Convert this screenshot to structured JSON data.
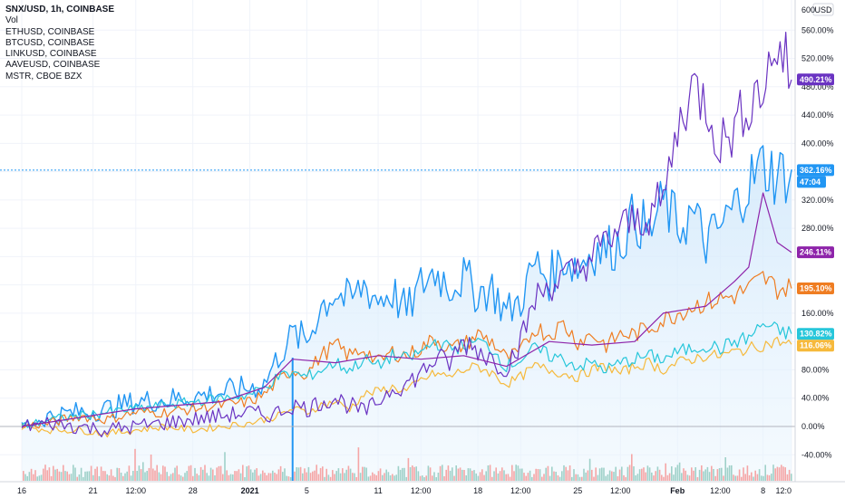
{
  "legend": {
    "main_symbol": "SNX/USD, 1h, COINBASE",
    "volume_label": "Vol",
    "compare": [
      "ETHUSD, COINBASE",
      "BTCUSD, COINBASE",
      "LINKUSD, COINBASE",
      "AAVEUSD, COINBASE",
      "MSTR, CBOE BZX"
    ]
  },
  "price_axis": {
    "currency": "USD",
    "top_value": "600",
    "ticks": [
      "560.00%",
      "520.00%",
      "480.00%",
      "440.00%",
      "400.00%",
      "320.00%",
      "280.00%",
      "160.00%",
      "80.00%",
      "40.00%",
      "0.00%",
      "-40.00%"
    ]
  },
  "time_axis": {
    "labels": [
      "16",
      "21",
      "12:00",
      "28",
      "2021",
      "5",
      "11",
      "12:00",
      "18",
      "12:00",
      "25",
      "12:00",
      "Feb",
      "12:00",
      "8",
      "12:0"
    ]
  },
  "colors": {
    "snx": "#2196f3",
    "eth": "#ef7d22",
    "btc": "#f6b93b",
    "link": "#26c6da",
    "aave": "#6a33c2",
    "mstr": "#8e24aa",
    "volume_up": "#9fd1c9",
    "volume_down": "#f5a6a6",
    "area_fill": "#e3f2fd"
  },
  "chart_data": {
    "type": "line",
    "title": "SNX/USD, 1h, COINBASE",
    "y_unit": "%",
    "ylim": [
      -60,
      600
    ],
    "x_range": [
      "Dec 16 2020",
      "Feb 12 2021"
    ],
    "scale": "percent",
    "grid": true,
    "legend_position": "top-left",
    "countdown": "47:04",
    "series": [
      {
        "name": "SNX/USD, COINBASE",
        "color": "#2196f3",
        "last_value": "362.16%",
        "points": [
          [
            16,
            0
          ],
          [
            18,
            15
          ],
          [
            20,
            20
          ],
          [
            22,
            25
          ],
          [
            24,
            35
          ],
          [
            26,
            38
          ],
          [
            28,
            42
          ],
          [
            30,
            48
          ],
          [
            32,
            55
          ],
          [
            33,
            60
          ],
          [
            34,
            100
          ],
          [
            35,
            130
          ],
          [
            36,
            120
          ],
          [
            37,
            170
          ],
          [
            38,
            190
          ],
          [
            39,
            175
          ],
          [
            40,
            200
          ],
          [
            41,
            180
          ],
          [
            42,
            190
          ],
          [
            43,
            160
          ],
          [
            44,
            200
          ],
          [
            45,
            220
          ],
          [
            46,
            200
          ],
          [
            47,
            210
          ],
          [
            48,
            190
          ],
          [
            49,
            195
          ],
          [
            50,
            160
          ],
          [
            51,
            180
          ],
          [
            52,
            230
          ],
          [
            53,
            210
          ],
          [
            54,
            240
          ],
          [
            55,
            225
          ],
          [
            56,
            250
          ],
          [
            57,
            250
          ],
          [
            58,
            260
          ],
          [
            59,
            300
          ],
          [
            60,
            270
          ],
          [
            61,
            320
          ],
          [
            62,
            280
          ],
          [
            63,
            300
          ],
          [
            64,
            260
          ],
          [
            65,
            280
          ],
          [
            66,
            310
          ],
          [
            67,
            345
          ],
          [
            68,
            370
          ],
          [
            69,
            355
          ],
          [
            70,
            362
          ]
        ]
      },
      {
        "name": "ETHUSD, COINBASE",
        "color": "#ef7d22",
        "last_value": "195.10%",
        "points": [
          [
            16,
            0
          ],
          [
            18,
            5
          ],
          [
            20,
            15
          ],
          [
            22,
            10
          ],
          [
            24,
            20
          ],
          [
            26,
            20
          ],
          [
            28,
            25
          ],
          [
            30,
            30
          ],
          [
            32,
            35
          ],
          [
            33,
            45
          ],
          [
            34,
            65
          ],
          [
            35,
            80
          ],
          [
            36,
            75
          ],
          [
            37,
            100
          ],
          [
            38,
            115
          ],
          [
            39,
            100
          ],
          [
            40,
            110
          ],
          [
            41,
            90
          ],
          [
            42,
            105
          ],
          [
            43,
            100
          ],
          [
            44,
            110
          ],
          [
            45,
            125
          ],
          [
            46,
            110
          ],
          [
            47,
            115
          ],
          [
            48,
            130
          ],
          [
            49,
            120
          ],
          [
            50,
            95
          ],
          [
            51,
            105
          ],
          [
            52,
            140
          ],
          [
            53,
            130
          ],
          [
            54,
            145
          ],
          [
            55,
            120
          ],
          [
            56,
            130
          ],
          [
            57,
            115
          ],
          [
            58,
            130
          ],
          [
            59,
            130
          ],
          [
            60,
            140
          ],
          [
            61,
            150
          ],
          [
            62,
            160
          ],
          [
            63,
            170
          ],
          [
            64,
            175
          ],
          [
            65,
            180
          ],
          [
            66,
            185
          ],
          [
            67,
            195
          ],
          [
            68,
            210
          ],
          [
            69,
            195
          ],
          [
            70,
            195
          ]
        ]
      },
      {
        "name": "BTCUSD, COINBASE",
        "color": "#f6b93b",
        "last_value": "116.06%",
        "points": [
          [
            16,
            0
          ],
          [
            18,
            -5
          ],
          [
            20,
            -5
          ],
          [
            22,
            -10
          ],
          [
            24,
            -5
          ],
          [
            26,
            0
          ],
          [
            28,
            -5
          ],
          [
            30,
            0
          ],
          [
            32,
            5
          ],
          [
            33,
            10
          ],
          [
            34,
            15
          ],
          [
            35,
            25
          ],
          [
            36,
            20
          ],
          [
            37,
            30
          ],
          [
            38,
            35
          ],
          [
            39,
            25
          ],
          [
            40,
            45
          ],
          [
            41,
            50
          ],
          [
            42,
            55
          ],
          [
            43,
            50
          ],
          [
            44,
            65
          ],
          [
            45,
            75
          ],
          [
            46,
            70
          ],
          [
            47,
            80
          ],
          [
            48,
            85
          ],
          [
            49,
            75
          ],
          [
            50,
            60
          ],
          [
            51,
            70
          ],
          [
            52,
            85
          ],
          [
            53,
            80
          ],
          [
            54,
            75
          ],
          [
            55,
            70
          ],
          [
            56,
            80
          ],
          [
            57,
            85
          ],
          [
            58,
            75
          ],
          [
            59,
            85
          ],
          [
            60,
            90
          ],
          [
            61,
            80
          ],
          [
            62,
            90
          ],
          [
            63,
            95
          ],
          [
            64,
            100
          ],
          [
            65,
            100
          ],
          [
            66,
            105
          ],
          [
            67,
            110
          ],
          [
            68,
            115
          ],
          [
            69,
            120
          ],
          [
            70,
            116
          ]
        ]
      },
      {
        "name": "LINKUSD, COINBASE",
        "color": "#26c6da",
        "last_value": "130.82%",
        "points": [
          [
            16,
            0
          ],
          [
            18,
            10
          ],
          [
            20,
            15
          ],
          [
            22,
            20
          ],
          [
            24,
            25
          ],
          [
            26,
            30
          ],
          [
            28,
            35
          ],
          [
            30,
            40
          ],
          [
            32,
            45
          ],
          [
            33,
            55
          ],
          [
            34,
            70
          ],
          [
            35,
            75
          ],
          [
            36,
            70
          ],
          [
            37,
            80
          ],
          [
            38,
            90
          ],
          [
            39,
            80
          ],
          [
            40,
            95
          ],
          [
            41,
            85
          ],
          [
            42,
            100
          ],
          [
            43,
            95
          ],
          [
            44,
            105
          ],
          [
            45,
            120
          ],
          [
            46,
            110
          ],
          [
            47,
            115
          ],
          [
            48,
            120
          ],
          [
            49,
            110
          ],
          [
            50,
            85
          ],
          [
            51,
            95
          ],
          [
            52,
            110
          ],
          [
            53,
            100
          ],
          [
            54,
            95
          ],
          [
            55,
            85
          ],
          [
            56,
            90
          ],
          [
            57,
            80
          ],
          [
            58,
            90
          ],
          [
            59,
            95
          ],
          [
            60,
            100
          ],
          [
            61,
            95
          ],
          [
            62,
            105
          ],
          [
            63,
            110
          ],
          [
            64,
            115
          ],
          [
            65,
            110
          ],
          [
            66,
            120
          ],
          [
            67,
            125
          ],
          [
            68,
            145
          ],
          [
            69,
            135
          ],
          [
            70,
            131
          ]
        ]
      },
      {
        "name": "AAVEUSD, COINBASE",
        "color": "#6a33c2",
        "last_value": "490.21%",
        "points": [
          [
            16,
            0
          ],
          [
            18,
            5
          ],
          [
            20,
            0
          ],
          [
            22,
            -5
          ],
          [
            24,
            0
          ],
          [
            26,
            5
          ],
          [
            28,
            10
          ],
          [
            30,
            15
          ],
          [
            32,
            20
          ],
          [
            33,
            15
          ],
          [
            34,
            20
          ],
          [
            35,
            30
          ],
          [
            36,
            25
          ],
          [
            37,
            35
          ],
          [
            38,
            40
          ],
          [
            39,
            30
          ],
          [
            40,
            20
          ],
          [
            41,
            35
          ],
          [
            42,
            55
          ],
          [
            43,
            60
          ],
          [
            44,
            75
          ],
          [
            45,
            95
          ],
          [
            46,
            90
          ],
          [
            47,
            120
          ],
          [
            48,
            110
          ],
          [
            49,
            95
          ],
          [
            50,
            85
          ],
          [
            51,
            120
          ],
          [
            52,
            180
          ],
          [
            53,
            200
          ],
          [
            54,
            210
          ],
          [
            55,
            220
          ],
          [
            56,
            240
          ],
          [
            57,
            260
          ],
          [
            58,
            280
          ],
          [
            59,
            290
          ],
          [
            60,
            300
          ],
          [
            61,
            320
          ],
          [
            62,
            420
          ],
          [
            63,
            480
          ],
          [
            64,
            460
          ],
          [
            65,
            400
          ],
          [
            66,
            420
          ],
          [
            67,
            460
          ],
          [
            68,
            480
          ],
          [
            69,
            540
          ],
          [
            70,
            490
          ]
        ]
      },
      {
        "name": "MSTR, CBOE BZX",
        "color": "#8e24aa",
        "last_value": "246.11%",
        "points": [
          [
            16,
            0
          ],
          [
            24,
            25
          ],
          [
            30,
            35
          ],
          [
            33,
            55
          ],
          [
            35,
            95
          ],
          [
            38,
            90
          ],
          [
            41,
            100
          ],
          [
            44,
            95
          ],
          [
            47,
            100
          ],
          [
            50,
            85
          ],
          [
            53,
            120
          ],
          [
            56,
            115
          ],
          [
            59,
            120
          ],
          [
            61,
            160
          ],
          [
            64,
            170
          ],
          [
            66,
            205
          ],
          [
            67,
            225
          ],
          [
            68,
            330
          ],
          [
            69,
            260
          ],
          [
            70,
            246
          ]
        ]
      }
    ]
  }
}
